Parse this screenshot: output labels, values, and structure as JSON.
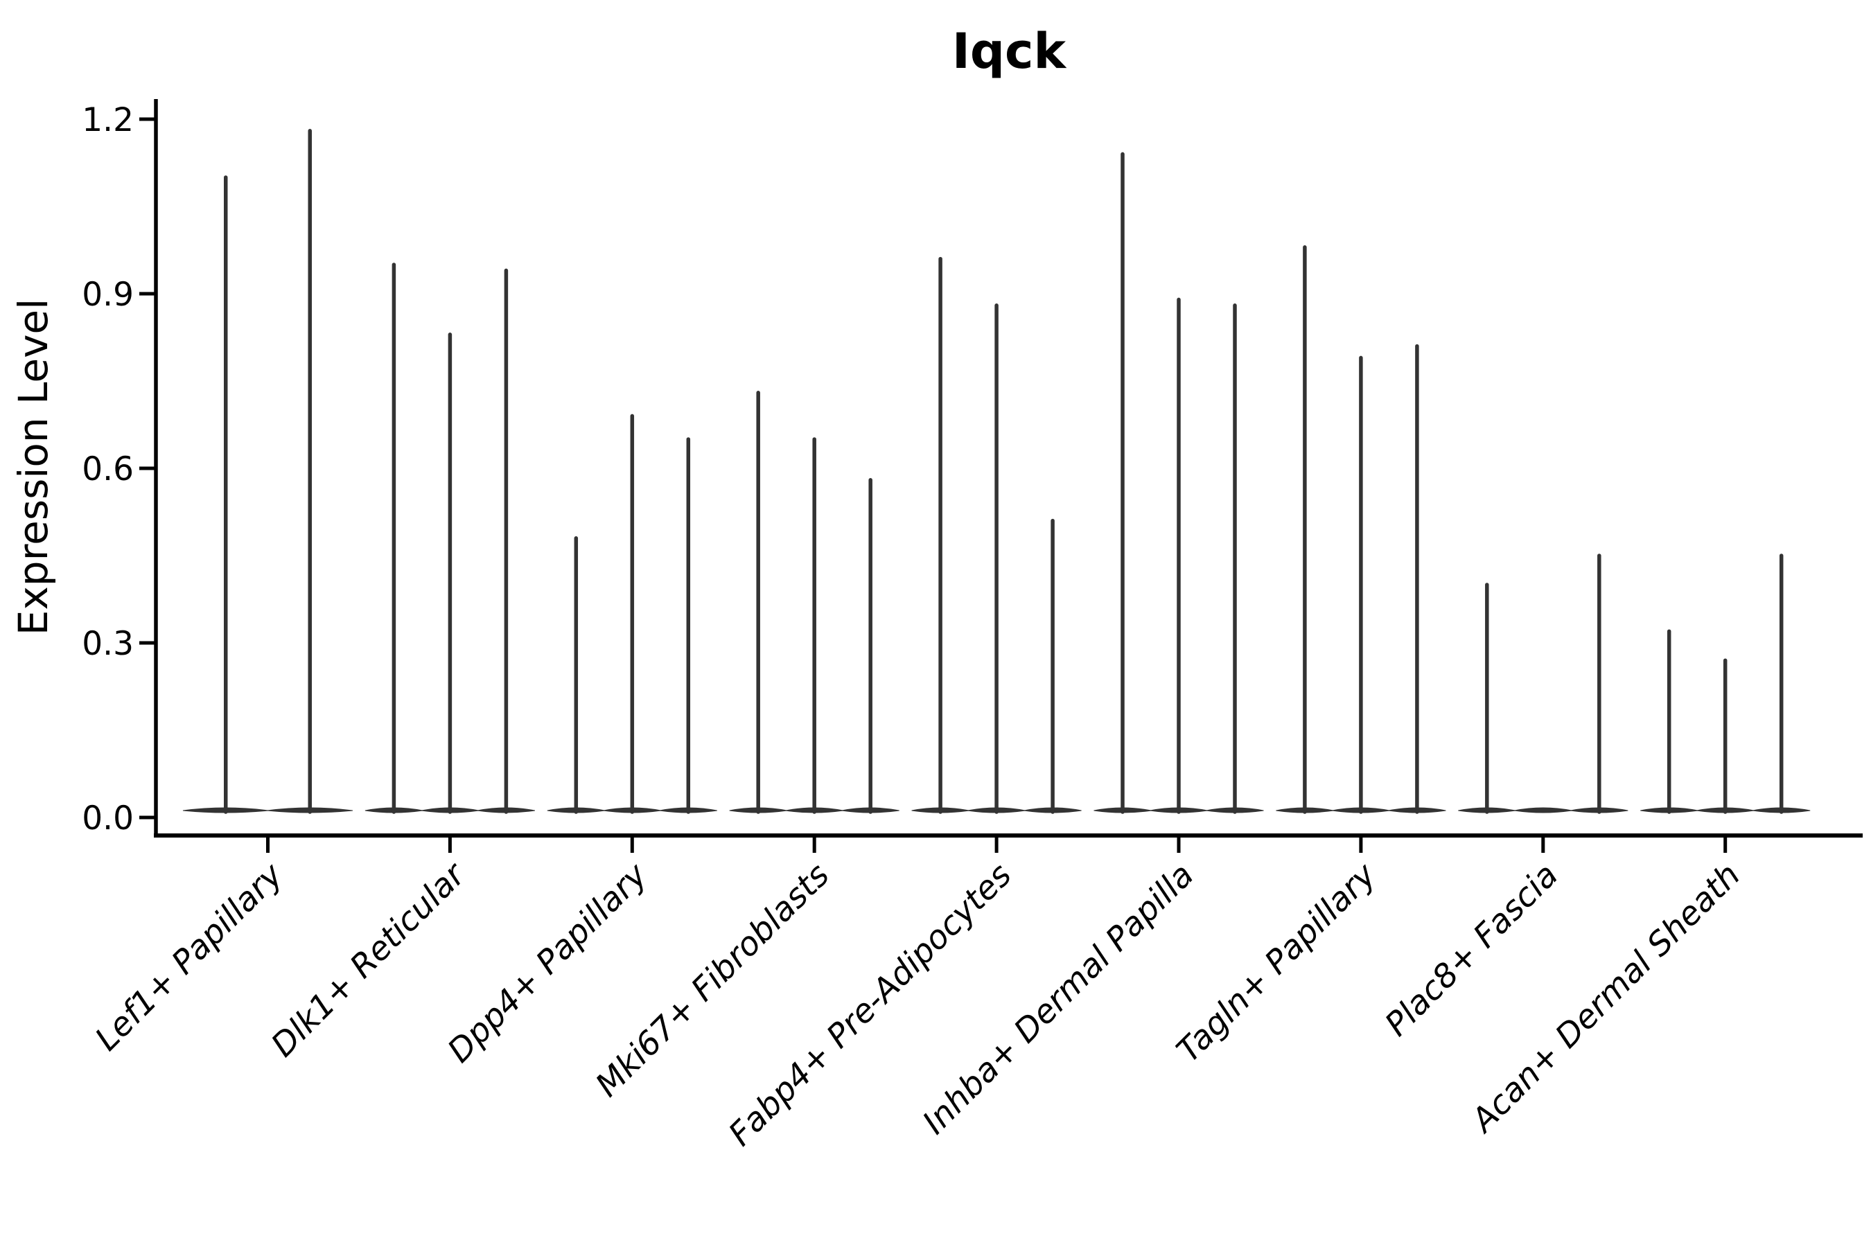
{
  "title": "Iqck",
  "ylabel": "Expression Level",
  "colors": {
    "violin": "#333333",
    "axis": "#000000",
    "background": "#ffffff"
  },
  "chart_data": {
    "type": "violin",
    "title": "Iqck",
    "xlabel": "",
    "ylabel": "Expression Level",
    "ylim": [
      0.0,
      1.26
    ],
    "yticks": [
      0.0,
      0.3,
      0.6,
      0.9,
      1.2
    ],
    "grid": false,
    "legend": "none",
    "orientation": "vertical",
    "description": "Violin plot of Iqck expression; each cell-type group contains multiple very thin violins (one per sample) with mass concentrated at 0 and a narrow spike up to the maximum expression value.",
    "categories": [
      "Lef1+ Papillary",
      "Dlk1+ Reticular",
      "Dpp4+ Papillary",
      "Mki67+ Fibroblasts",
      "Fabp4+ Pre-Adipocytes",
      "Inhba+ Dermal Papilla",
      "Tagln+ Papillary",
      "Plac8+ Fascia",
      "Acan+ Dermal Sheath"
    ],
    "series": [
      {
        "category": "Lef1+ Papillary",
        "violin_max_values": [
          1.1,
          1.18
        ]
      },
      {
        "category": "Dlk1+ Reticular",
        "violin_max_values": [
          0.95,
          0.83,
          0.94
        ]
      },
      {
        "category": "Dpp4+ Papillary",
        "violin_max_values": [
          0.48,
          0.69,
          0.65
        ]
      },
      {
        "category": "Mki67+ Fibroblasts",
        "violin_max_values": [
          0.73,
          0.65,
          0.58
        ]
      },
      {
        "category": "Fabp4+ Pre-Adipocytes",
        "violin_max_values": [
          0.96,
          0.88,
          0.51
        ]
      },
      {
        "category": "Inhba+ Dermal Papilla",
        "violin_max_values": [
          1.14,
          0.89,
          0.88
        ]
      },
      {
        "category": "Tagln+ Papillary",
        "violin_max_values": [
          0.98,
          0.79,
          0.81
        ]
      },
      {
        "category": "Plac8+ Fascia",
        "violin_max_values": [
          0.4,
          0.0,
          0.45
        ]
      },
      {
        "category": "Acan+ Dermal Sheath",
        "violin_max_values": [
          0.32,
          0.27,
          0.45
        ]
      }
    ]
  }
}
